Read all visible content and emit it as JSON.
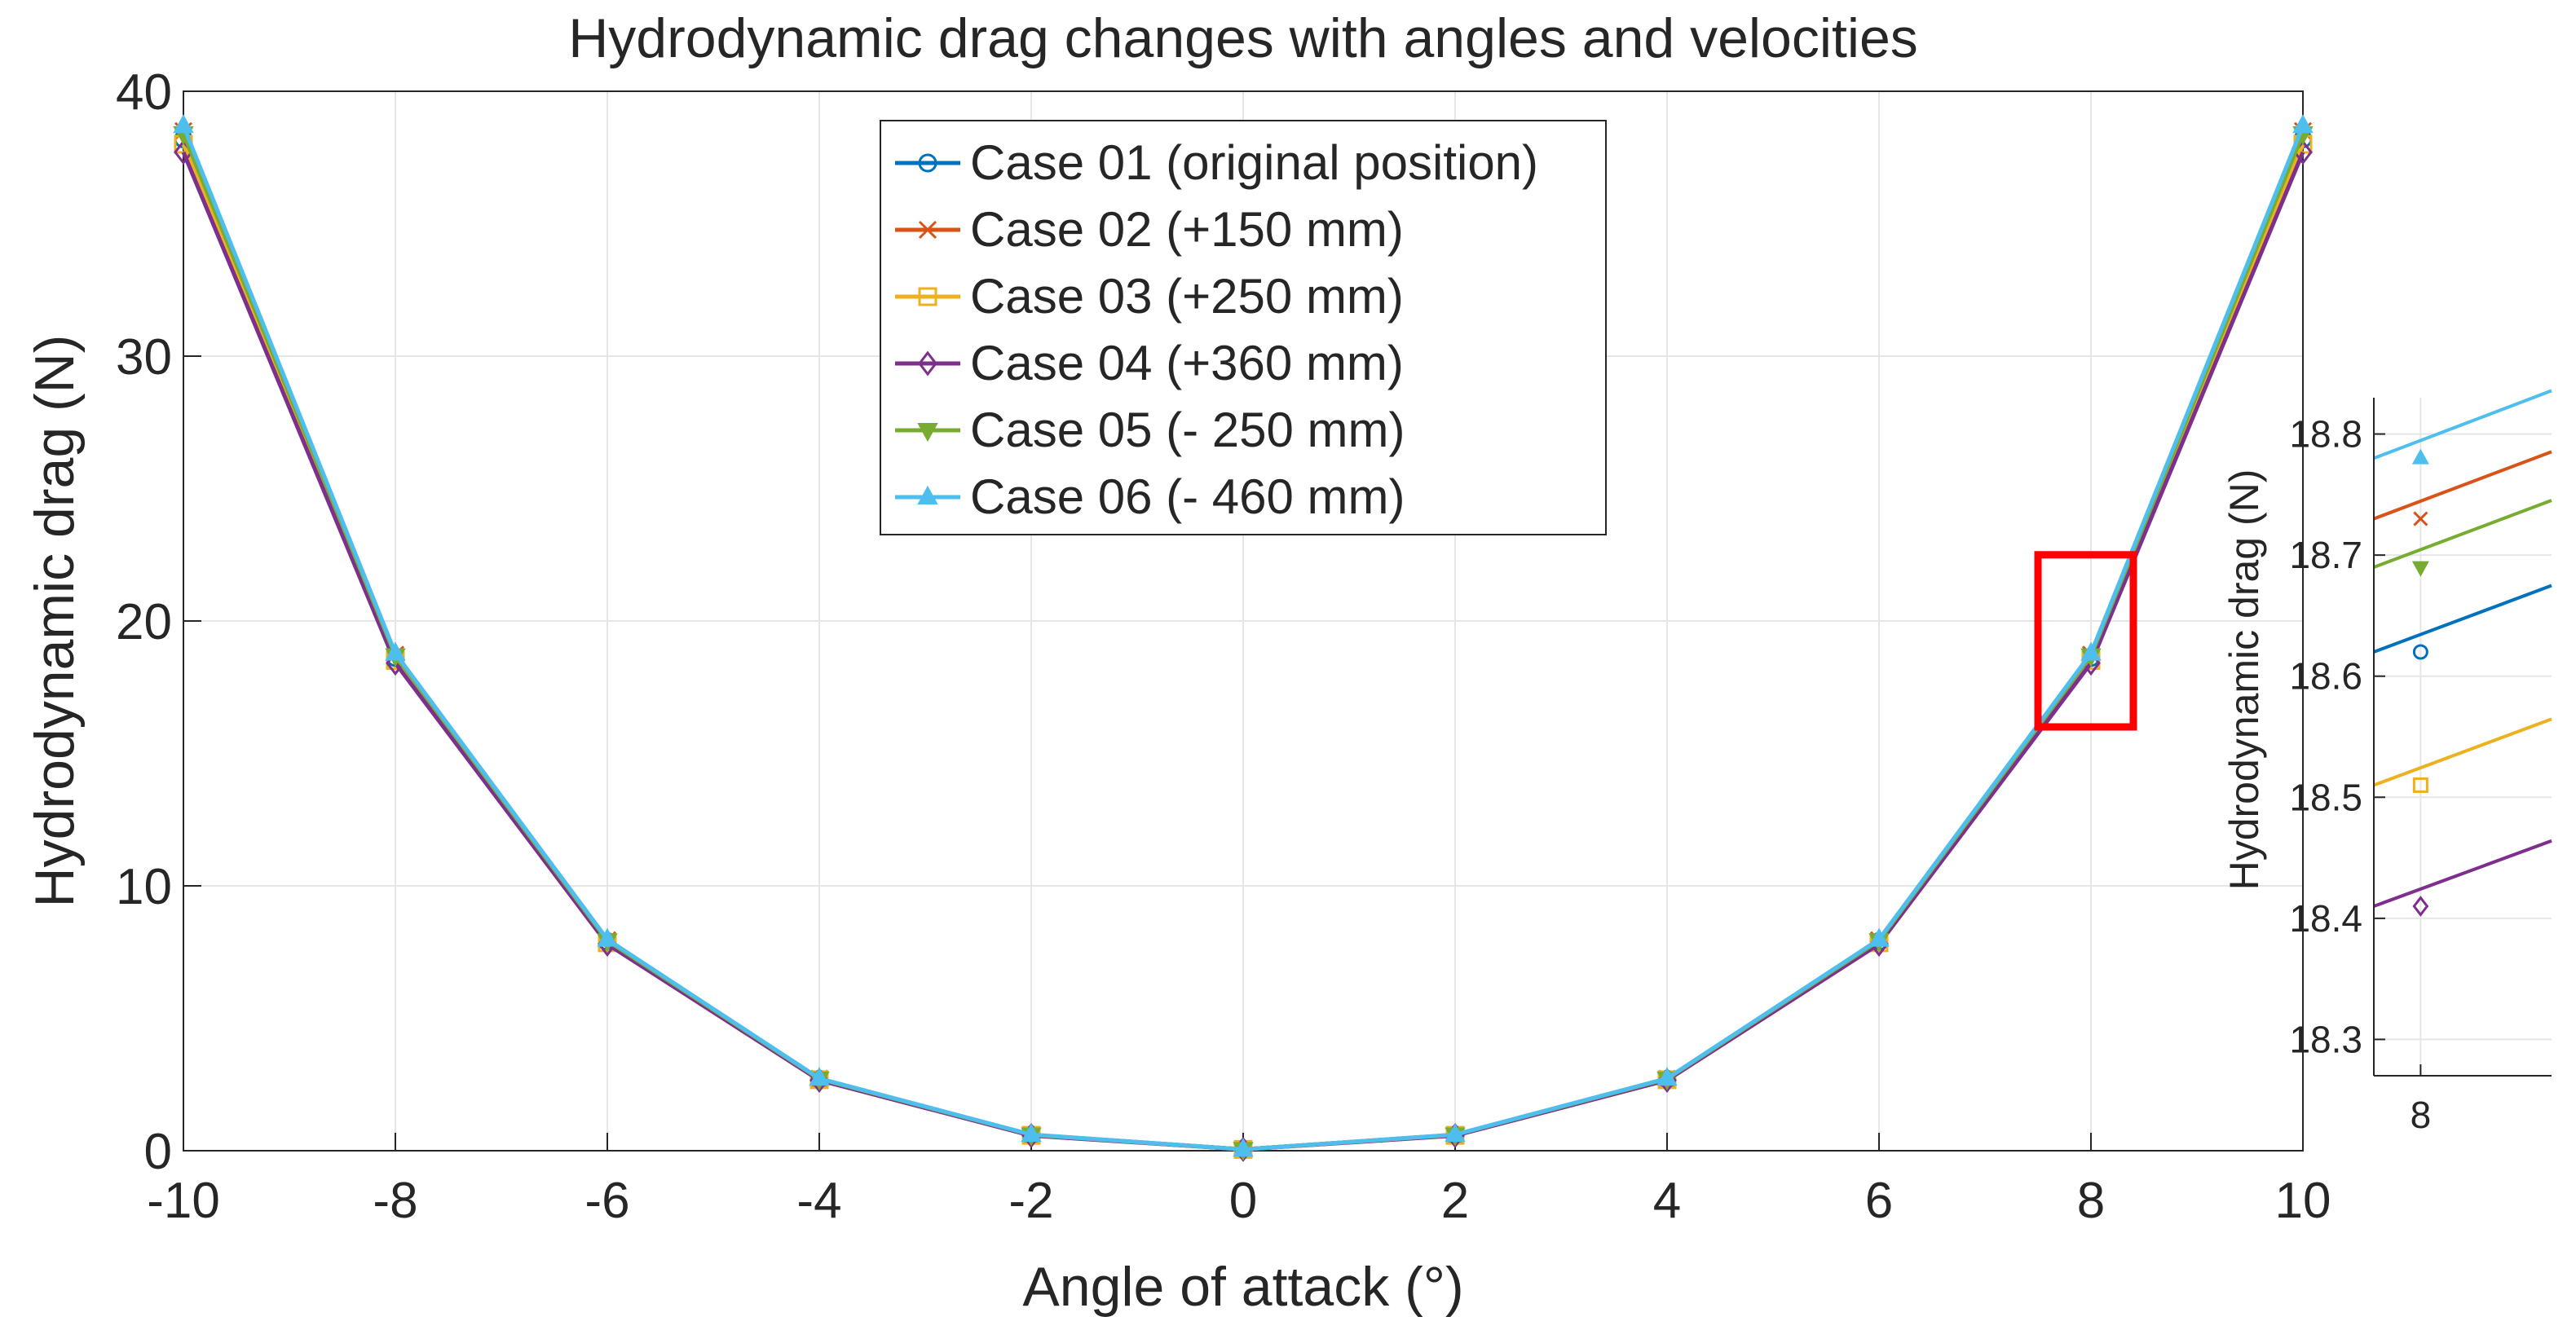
{
  "chart_data": {
    "type": "line",
    "title": "Hydrodynamic drag changes with angles and velocities",
    "xlabel": "Angle of attack (°)",
    "ylabel": "Hydrodynamic drag (N)",
    "xlim": [
      -10,
      10
    ],
    "ylim": [
      0,
      40
    ],
    "xticks": [
      -10,
      -8,
      -6,
      -4,
      -2,
      0,
      2,
      4,
      6,
      8,
      10
    ],
    "yticks": [
      0,
      10,
      20,
      30,
      40
    ],
    "grid": true,
    "legend_position": "top-center",
    "x": [
      -10,
      -8,
      -6,
      -4,
      -2,
      0,
      2,
      4,
      6,
      8,
      10
    ],
    "series": [
      {
        "name": "Case 01 (original position)",
        "color": "#0072BD",
        "marker": "circle",
        "values": [
          38.2,
          18.62,
          7.9,
          2.7,
          0.6,
          0.05,
          0.6,
          2.7,
          7.9,
          18.62,
          38.2
        ]
      },
      {
        "name": "Case 02 (+150 mm)",
        "color": "#D95319",
        "marker": "x",
        "values": [
          38.5,
          18.73,
          7.95,
          2.72,
          0.6,
          0.05,
          0.6,
          2.72,
          7.95,
          18.73,
          38.5
        ]
      },
      {
        "name": "Case 03 (+250 mm)",
        "color": "#EDB120",
        "marker": "square",
        "values": [
          38.0,
          18.51,
          7.85,
          2.68,
          0.58,
          0.05,
          0.58,
          2.68,
          7.85,
          18.51,
          38.0
        ]
      },
      {
        "name": "Case 04 (+360 mm)",
        "color": "#7E2F8E",
        "marker": "diamond",
        "values": [
          37.7,
          18.41,
          7.8,
          2.66,
          0.57,
          0.05,
          0.57,
          2.66,
          7.8,
          18.41,
          37.7
        ]
      },
      {
        "name": "Case 05 (- 250 mm)",
        "color": "#77AC30",
        "marker": "triangle-down",
        "values": [
          38.4,
          18.69,
          7.93,
          2.71,
          0.6,
          0.05,
          0.6,
          2.71,
          7.93,
          18.69,
          38.4
        ]
      },
      {
        "name": "Case 06 (- 460 mm)",
        "color": "#4DBEEE",
        "marker": "triangle-up",
        "values": [
          38.7,
          18.78,
          7.98,
          2.73,
          0.61,
          0.05,
          0.61,
          2.73,
          7.98,
          18.78,
          38.7
        ]
      }
    ],
    "zoom_box": {
      "x_range": [
        7.5,
        8.4
      ],
      "y_range": [
        16,
        22.5
      ],
      "color": "#FF0000"
    },
    "inset": {
      "ylabel": "Hydrodynamic drag (N)",
      "ylim": [
        18.27,
        18.83
      ],
      "yticks": [
        "18.3",
        "18.4",
        "18.5",
        "18.6",
        "18.7",
        "18.8"
      ],
      "xticks": [
        "8"
      ],
      "xlim": [
        7.9,
        8.28
      ]
    }
  }
}
